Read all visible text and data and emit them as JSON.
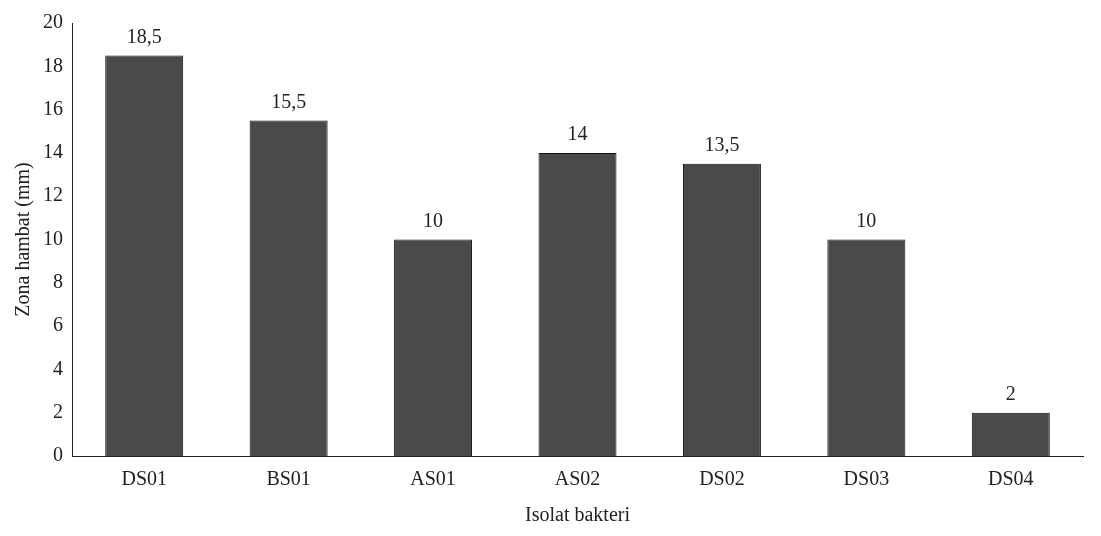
{
  "chart_data": {
    "type": "bar",
    "xlabel": "Isolat bakteri",
    "ylabel": "Zona hambat (mm)",
    "categories": [
      "DS01",
      "BS01",
      "AS01",
      "AS02",
      "DS02",
      "DS03",
      "DS04"
    ],
    "values": [
      18.5,
      15.5,
      10,
      14,
      13.5,
      10,
      2
    ],
    "value_labels": [
      "18,5",
      "15,5",
      "10",
      "14",
      "13,5",
      "10",
      "2"
    ],
    "color": "#4a4a4a",
    "ylim": [
      0,
      20
    ],
    "yticks": [
      0,
      2,
      4,
      6,
      8,
      10,
      12,
      14,
      16,
      18,
      20
    ],
    "grid": false,
    "legend": false
  }
}
